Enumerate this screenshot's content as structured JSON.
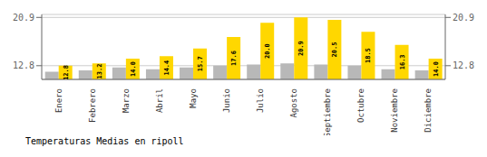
{
  "chart_data": {
    "type": "bar",
    "title": "Temperaturas Medias en ripoll",
    "categories": [
      "Enero",
      "Febrero",
      "Marzo",
      "Abril",
      "Mayo",
      "Junio",
      "Julio",
      "Agosto",
      "Septiembre",
      "Octubre",
      "Noviembre",
      "Diciembre"
    ],
    "series": [
      {
        "color": "#B8B8B8",
        "values": [
          11.8,
          12.0,
          12.5,
          12.2,
          12.5,
          12.8,
          13.0,
          13.2,
          13.0,
          12.8,
          12.2,
          12.0
        ]
      },
      {
        "color": "#FFD700",
        "values": [
          12.8,
          13.2,
          14.0,
          14.4,
          15.7,
          17.6,
          20.0,
          20.9,
          20.5,
          18.5,
          16.3,
          14.0
        ],
        "data_labels": true,
        "value_labels": [
          "12.8",
          "13.2",
          "14.0",
          "14.4",
          "15.7",
          "17.6",
          "20.0",
          "20.9",
          "20.5",
          "18.5",
          "16.3",
          "14.0"
        ]
      }
    ],
    "ylim": [
      10.5,
      21.4
    ],
    "yticks": [
      12.8,
      20.9
    ],
    "y2lim": [
      10.5,
      21.4
    ],
    "y2ticks": [
      12.8,
      20.9
    ],
    "grid": true
  }
}
